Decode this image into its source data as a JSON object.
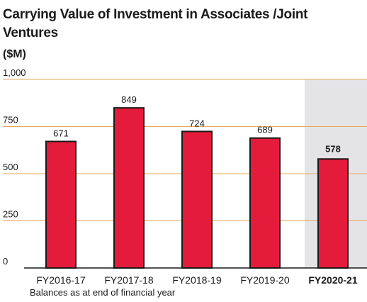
{
  "chart_data": {
    "type": "bar",
    "title": "Carrying Value of Investment in Associates /Joint Ventures",
    "ylabel": "($M)",
    "xlabel": "",
    "footnote": "Balances as at end of financial year",
    "categories": [
      "FY2016-17",
      "FY2017-18",
      "FY2018-19",
      "FY2019-20",
      "FY2020-21"
    ],
    "values": [
      671,
      849,
      724,
      689,
      578
    ],
    "ylim": [
      0,
      1000
    ],
    "yticks": [
      0,
      250,
      500,
      750,
      1000
    ],
    "ytick_labels": [
      "0",
      "250",
      "500",
      "750",
      "1,000"
    ],
    "highlighted_category": "FY2020-21",
    "grid": true,
    "colors": {
      "bar": "#e41b3a",
      "bar_outline": "#1a1a1a",
      "grid": "#e8a85a",
      "highlight_band": "#e4e4e6"
    }
  }
}
